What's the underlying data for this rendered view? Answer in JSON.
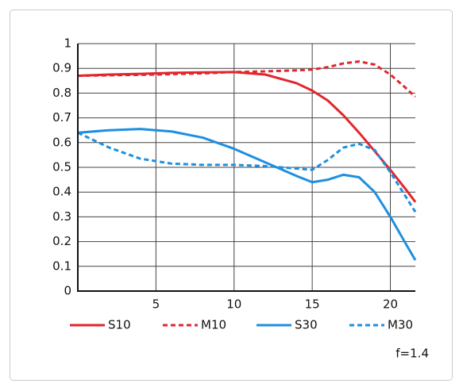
{
  "chart_data": {
    "type": "line",
    "x": [
      0,
      2,
      4,
      5,
      6,
      8,
      10,
      12,
      14,
      15,
      16,
      17,
      18,
      19,
      20,
      21,
      21.6
    ],
    "series": [
      {
        "name": "S10",
        "color": "#e3262e",
        "dash": false,
        "values": [
          0.87,
          0.875,
          0.878,
          0.88,
          0.882,
          0.884,
          0.885,
          0.875,
          0.84,
          0.81,
          0.77,
          0.71,
          0.64,
          0.565,
          0.49,
          0.41,
          0.36
        ]
      },
      {
        "name": "M10",
        "color": "#e3262e",
        "dash": true,
        "values": [
          0.87,
          0.872,
          0.874,
          0.875,
          0.877,
          0.88,
          0.885,
          0.888,
          0.892,
          0.895,
          0.905,
          0.92,
          0.928,
          0.915,
          0.875,
          0.82,
          0.785
        ]
      },
      {
        "name": "S30",
        "color": "#1e8fe0",
        "dash": false,
        "values": [
          0.64,
          0.65,
          0.655,
          0.65,
          0.645,
          0.62,
          0.575,
          0.52,
          0.465,
          0.44,
          0.45,
          0.47,
          0.46,
          0.4,
          0.3,
          0.19,
          0.125
        ]
      },
      {
        "name": "M30",
        "color": "#1e8fe0",
        "dash": true,
        "values": [
          0.64,
          0.58,
          0.535,
          0.525,
          0.515,
          0.51,
          0.51,
          0.505,
          0.495,
          0.49,
          0.53,
          0.58,
          0.595,
          0.57,
          0.48,
          0.38,
          0.32
        ]
      }
    ],
    "xlim": [
      0,
      21.6
    ],
    "xticks": [
      5,
      10,
      15,
      20
    ],
    "ylim": [
      0,
      1
    ],
    "yticks": [
      0,
      0.1,
      0.2,
      0.3,
      0.4,
      0.5,
      0.6,
      0.7,
      0.8,
      0.9,
      1
    ],
    "grid": true,
    "annotation": "f=1.4"
  }
}
